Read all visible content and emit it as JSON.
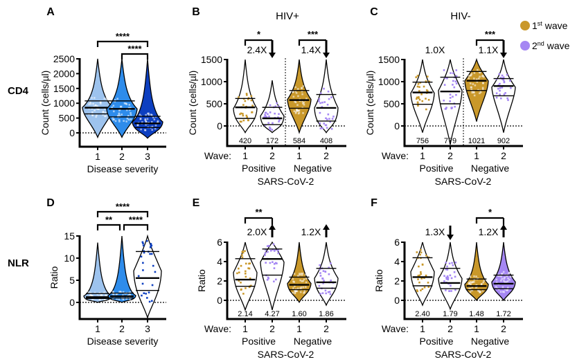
{
  "figure": {
    "row_labels": [
      "CD4",
      "NLR"
    ],
    "legend": {
      "items": [
        {
          "label_main": "1",
          "label_sup": "st",
          "label_rest": " wave",
          "color": "#C9982A"
        },
        {
          "label_main": "2",
          "label_sup": "nd",
          "label_rest": " wave",
          "color": "#A587F3"
        }
      ]
    },
    "colors": {
      "wave1": "#C9982A",
      "wave2": "#A587F3",
      "severity1": "#9DC3EE",
      "severity2": "#2E8CEB",
      "severity3": "#0D3FC0"
    }
  },
  "chart_data": [
    {
      "id": "A",
      "type": "violin",
      "panel_letter": "A",
      "title": "",
      "ylabel": "Count (cells/µl)",
      "xlabel": "Disease severity",
      "ylim": [
        -500,
        2500
      ],
      "yticks": [
        0,
        500,
        1000,
        1500,
        2000,
        2500
      ],
      "categories": [
        "1",
        "2",
        "3"
      ],
      "series": [
        {
          "name": "Severity 1",
          "color_key": "severity1",
          "filled": true,
          "median": 850,
          "q1": 640,
          "q3": 1080,
          "min": -150,
          "max": 2500
        },
        {
          "name": "Severity 2",
          "color_key": "severity2",
          "filled": true,
          "median": 810,
          "q1": 540,
          "q3": 1080,
          "min": -150,
          "max": 2500
        },
        {
          "name": "Severity 3",
          "color_key": "severity3",
          "filled": true,
          "median": 320,
          "q1": 180,
          "q3": 560,
          "min": -180,
          "max": 2500
        }
      ],
      "significance": [
        {
          "from": 0,
          "to": 2,
          "label": "****"
        },
        {
          "from": 1,
          "to": 2,
          "label": "****"
        }
      ]
    },
    {
      "id": "B",
      "type": "violin",
      "panel_letter": "B",
      "title": "HIV+",
      "ylabel": "Count (cells/µl)",
      "xlabel": "SARS-CoV-2",
      "wave_label": "Wave:",
      "group_labels": [
        "Positive",
        "Negative"
      ],
      "ylim": [
        -450,
        1500
      ],
      "yticks": [
        0,
        500,
        1000,
        1500
      ],
      "categories": [
        "1",
        "2",
        "1",
        "2"
      ],
      "medians_text": [
        "420",
        "172",
        "584",
        "408"
      ],
      "series": [
        {
          "name": "Positive wave 1",
          "color_key": "wave1",
          "filled": false,
          "median": 420,
          "q1": 170,
          "q3": 620,
          "min": -150,
          "max": 1500
        },
        {
          "name": "Positive wave 2",
          "color_key": "wave2",
          "filled": false,
          "median": 172,
          "q1": 30,
          "q3": 420,
          "min": -150,
          "max": 1030
        },
        {
          "name": "Negative wave 1",
          "color_key": "wave1",
          "filled": true,
          "median": 584,
          "q1": 400,
          "q3": 800,
          "min": -150,
          "max": 1500
        },
        {
          "name": "Negative wave 2",
          "color_key": "wave2",
          "filled": false,
          "median": 408,
          "q1": 110,
          "q3": 710,
          "min": -150,
          "max": 1500
        }
      ],
      "fold_changes": [
        {
          "group": 0,
          "label": "2.4X",
          "direction": "down",
          "stars": "*"
        },
        {
          "group": 1,
          "label": "1.4X",
          "direction": "down",
          "stars": "***"
        }
      ]
    },
    {
      "id": "C",
      "type": "violin",
      "panel_letter": "C",
      "title": "HIV-",
      "ylabel": "Count (cells/µl)",
      "xlabel": "SARS-CoV-2",
      "wave_label": "Wave:",
      "group_labels": [
        "Positive",
        "Negative"
      ],
      "ylim": [
        -450,
        1500
      ],
      "yticks": [
        0,
        500,
        1000,
        1500
      ],
      "categories": [
        "1",
        "2",
        "1",
        "2"
      ],
      "medians_text": [
        "756",
        "779",
        "1021",
        "902"
      ],
      "series": [
        {
          "name": "Positive wave 1",
          "color_key": "wave1",
          "filled": false,
          "median": 756,
          "q1": 490,
          "q3": 990,
          "min": -150,
          "max": 1500
        },
        {
          "name": "Positive wave 2",
          "color_key": "wave2",
          "filled": false,
          "median": 779,
          "q1": 500,
          "q3": 1100,
          "min": -450,
          "max": 1500
        },
        {
          "name": "Negative wave 1",
          "color_key": "wave1",
          "filled": true,
          "median": 1021,
          "q1": 800,
          "q3": 1230,
          "min": 100,
          "max": 1500
        },
        {
          "name": "Negative wave 2",
          "color_key": "wave2",
          "filled": false,
          "median": 902,
          "q1": 680,
          "q3": 1070,
          "min": -150,
          "max": 1500
        }
      ],
      "fold_changes": [
        {
          "group": 0,
          "label": "1.0X",
          "direction": "none",
          "stars": ""
        },
        {
          "group": 1,
          "label": "1.1X",
          "direction": "down",
          "stars": "***"
        }
      ]
    },
    {
      "id": "D",
      "type": "violin",
      "panel_letter": "D",
      "title": "",
      "ylabel": "Ratio",
      "xlabel": "Disease severity",
      "ylim": [
        -4,
        15
      ],
      "yticks": [
        0,
        5,
        10,
        15
      ],
      "categories": [
        "1",
        "2",
        "3"
      ],
      "series": [
        {
          "name": "Severity 1",
          "color_key": "severity1",
          "filled": true,
          "median": 1.2,
          "q1": 0.9,
          "q3": 2.0,
          "min": 0,
          "max": 13.5
        },
        {
          "name": "Severity 2",
          "color_key": "severity2",
          "filled": true,
          "median": 1.4,
          "q1": 1.0,
          "q3": 2.1,
          "min": 0,
          "max": 15.5
        },
        {
          "name": "Severity 3",
          "color_key": "severity3",
          "filled": false,
          "median": 5.5,
          "q1": 2.7,
          "q3": 11.5,
          "min": -4,
          "max": 15.5
        }
      ],
      "significance": [
        {
          "from": 0,
          "to": 2,
          "label": "****"
        },
        {
          "from": 0,
          "to": 1,
          "label": "**"
        },
        {
          "from": 1,
          "to": 2,
          "label": "****"
        }
      ]
    },
    {
      "id": "E",
      "type": "violin",
      "panel_letter": "E",
      "title": "",
      "ylabel": "Ratio",
      "xlabel": "SARS-CoV-2",
      "wave_label": "Wave:",
      "group_labels": [
        "Positive",
        "Negative"
      ],
      "ylim": [
        -1.8,
        7
      ],
      "yticks": [
        0,
        2,
        4,
        6
      ],
      "categories": [
        "1",
        "2",
        "1",
        "2"
      ],
      "medians_text": [
        "2.14",
        "4.27",
        "1.60",
        "1.86"
      ],
      "series": [
        {
          "name": "Positive wave 1",
          "color_key": "wave1",
          "filled": false,
          "median": 2.14,
          "q1": 1.45,
          "q3": 4.3,
          "min": -1.0,
          "max": 7
        },
        {
          "name": "Positive wave 2",
          "color_key": "wave2",
          "filled": false,
          "median": 4.27,
          "q1": 2.6,
          "q3": 5.3,
          "min": -1.0,
          "max": 7
        },
        {
          "name": "Negative wave 1",
          "color_key": "wave1",
          "filled": true,
          "median": 1.6,
          "q1": 1.1,
          "q3": 2.4,
          "min": -0.2,
          "max": 7
        },
        {
          "name": "Negative wave 2",
          "color_key": "wave2",
          "filled": false,
          "median": 1.86,
          "q1": 1.25,
          "q3": 3.3,
          "min": -0.5,
          "max": 7
        }
      ],
      "fold_changes": [
        {
          "group": 0,
          "label": "2.0X",
          "direction": "up",
          "stars": "**"
        },
        {
          "group": 1,
          "label": "1.2X",
          "direction": "up",
          "stars": ""
        }
      ]
    },
    {
      "id": "F",
      "type": "violin",
      "panel_letter": "F",
      "title": "",
      "ylabel": "Ratio",
      "xlabel": "SARS-CoV-2",
      "wave_label": "Wave:",
      "group_labels": [
        "Positive",
        "Negative"
      ],
      "ylim": [
        -1.8,
        7
      ],
      "yticks": [
        0,
        2,
        4,
        6
      ],
      "categories": [
        "1",
        "2",
        "1",
        "2"
      ],
      "medians_text": [
        "2.40",
        "1.79",
        "1.48",
        "1.72"
      ],
      "series": [
        {
          "name": "Positive wave 1",
          "color_key": "wave1",
          "filled": false,
          "median": 2.4,
          "q1": 1.5,
          "q3": 4.4,
          "min": -0.5,
          "max": 7
        },
        {
          "name": "Positive wave 2",
          "color_key": "wave2",
          "filled": false,
          "median": 1.79,
          "q1": 1.2,
          "q3": 3.3,
          "min": -0.9,
          "max": 7
        },
        {
          "name": "Negative wave 1",
          "color_key": "wave1",
          "filled": true,
          "median": 1.48,
          "q1": 1.1,
          "q3": 2.2,
          "min": 0,
          "max": 7
        },
        {
          "name": "Negative wave 2",
          "color_key": "wave2",
          "filled": true,
          "median": 1.72,
          "q1": 1.2,
          "q3": 2.6,
          "min": 0,
          "max": 7
        }
      ],
      "fold_changes": [
        {
          "group": 0,
          "label": "1.3X",
          "direction": "down",
          "stars": ""
        },
        {
          "group": 1,
          "label": "1.2X",
          "direction": "up",
          "stars": "*"
        }
      ]
    }
  ]
}
